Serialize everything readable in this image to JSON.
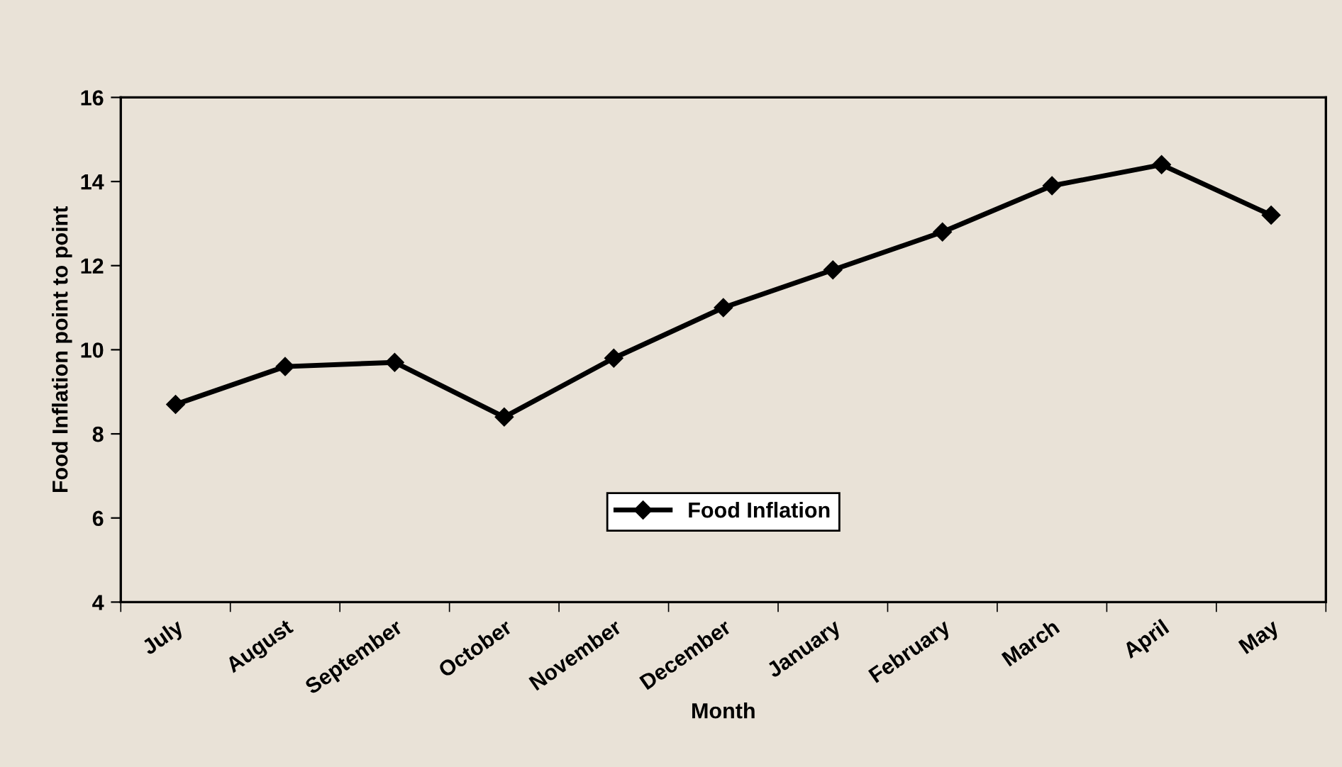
{
  "chart_data": {
    "type": "line",
    "xlabel": "Month",
    "ylabel": "Food Inflation point to point",
    "categories": [
      "July",
      "August",
      "September",
      "October",
      "November",
      "December",
      "January",
      "February",
      "March",
      "April",
      "May"
    ],
    "series": [
      {
        "name": "Food Inflation",
        "color": "#000000",
        "values": [
          8.7,
          9.6,
          9.7,
          8.4,
          9.8,
          11.0,
          11.9,
          12.8,
          13.9,
          14.4,
          13.2
        ]
      }
    ],
    "ylim": [
      4,
      16
    ],
    "yticks": [
      4,
      6,
      8,
      10,
      12,
      14,
      16
    ],
    "grid": false,
    "legend": "bottom",
    "marker": "diamond",
    "line_style": "solid"
  }
}
